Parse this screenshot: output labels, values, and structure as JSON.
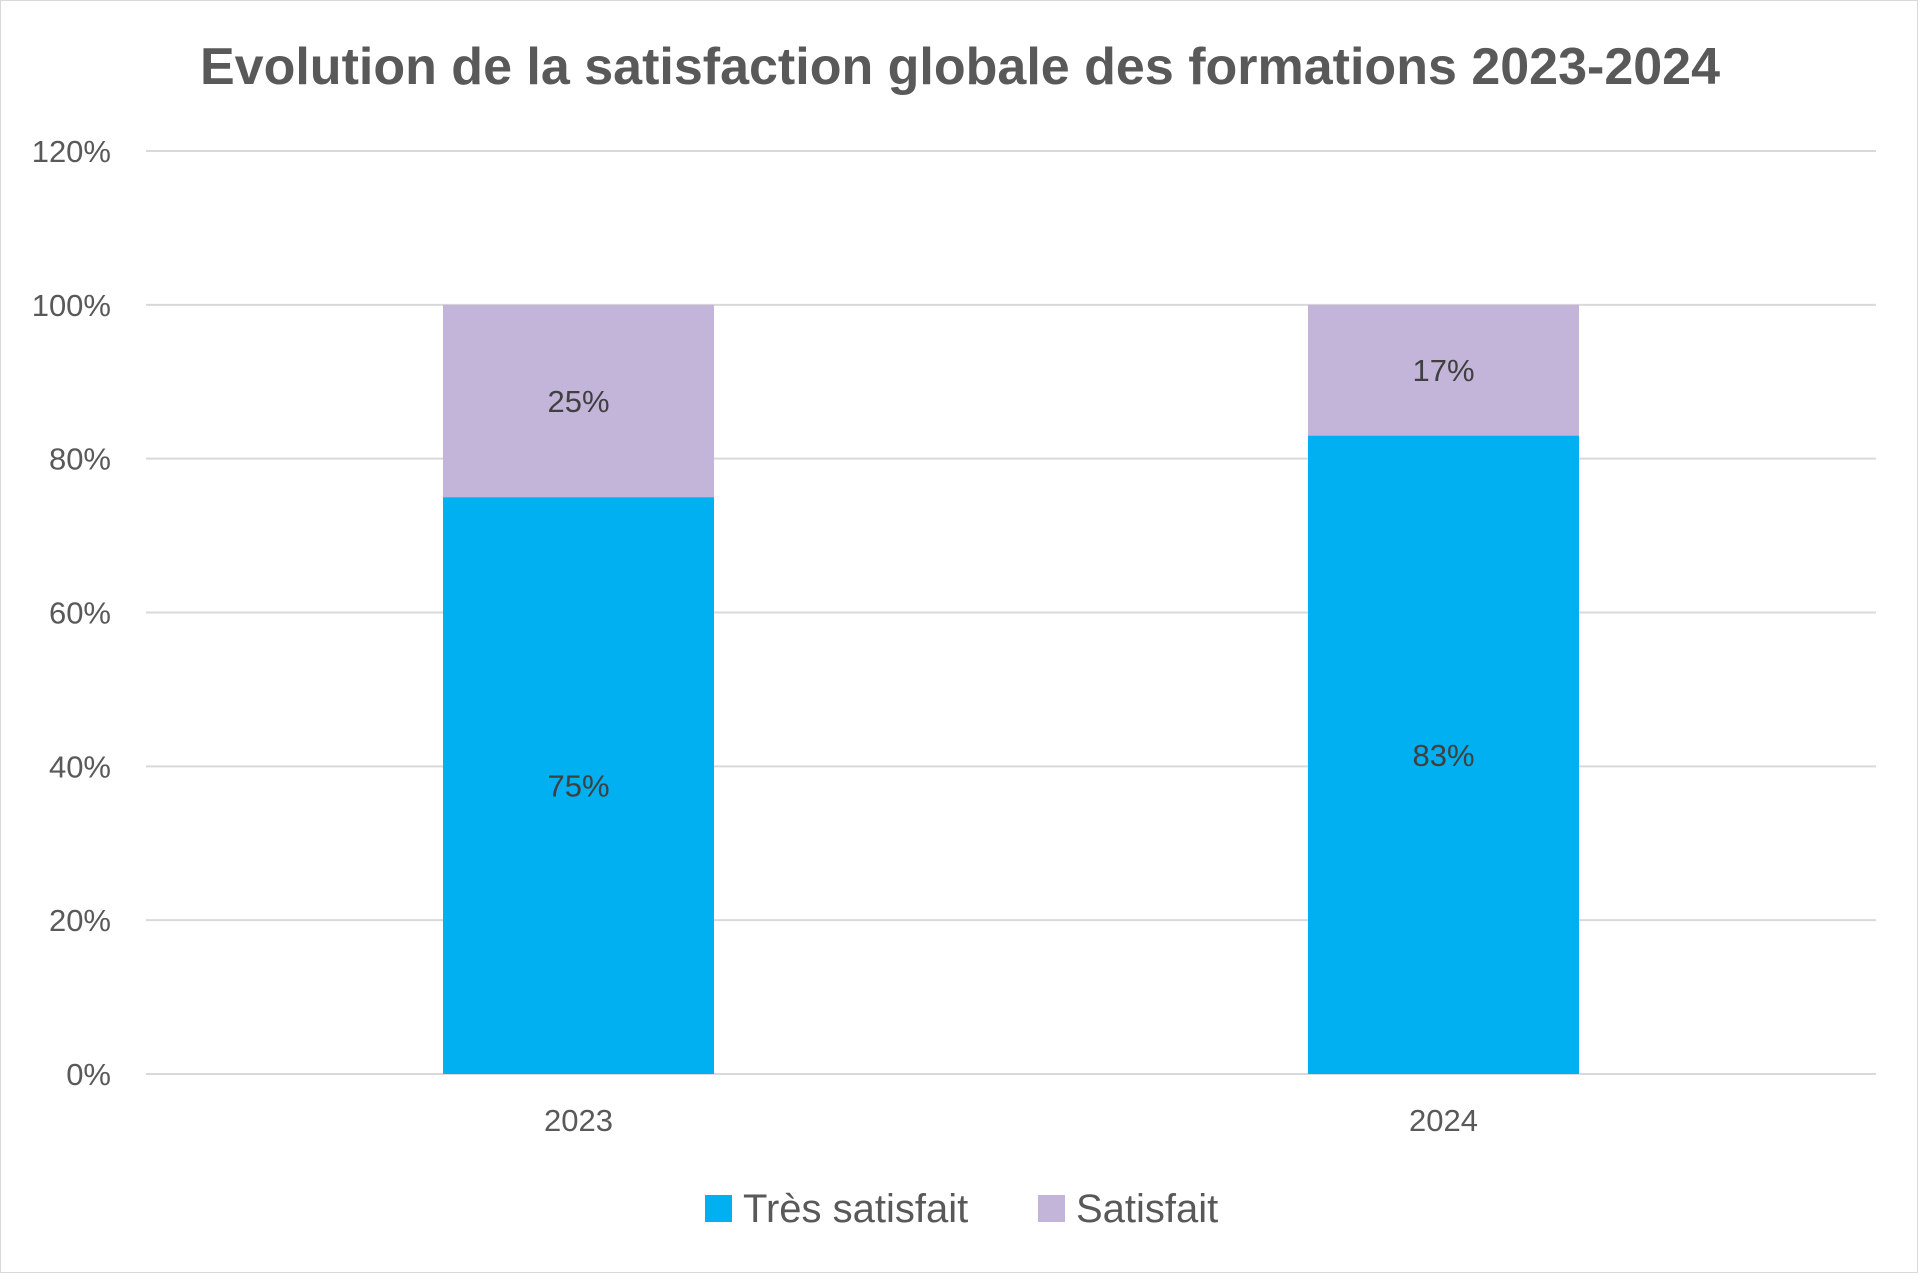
{
  "chart_data": {
    "type": "bar",
    "stacked": true,
    "title": "Evolution de la satisfaction globale des formations 2023-2024",
    "categories": [
      "2023",
      "2024"
    ],
    "series": [
      {
        "name": "Très satisfait",
        "values": [
          75,
          83
        ],
        "labels": [
          "75%",
          "83%"
        ],
        "color": "#00B0F0"
      },
      {
        "name": "Satisfait",
        "values": [
          25,
          17
        ],
        "labels": [
          "25%",
          "17%"
        ],
        "color": "#C3B5D9"
      }
    ],
    "ylim": [
      0,
      120
    ],
    "yticks": [
      0,
      20,
      40,
      60,
      80,
      100,
      120
    ],
    "ytick_labels": [
      "0%",
      "20%",
      "40%",
      "60%",
      "80%",
      "100%",
      "120%"
    ],
    "xlabel": "",
    "ylabel": "",
    "grid": true,
    "legend_position": "bottom"
  },
  "colors": {
    "grid": "#d9d9d9",
    "text": "#595959"
  }
}
